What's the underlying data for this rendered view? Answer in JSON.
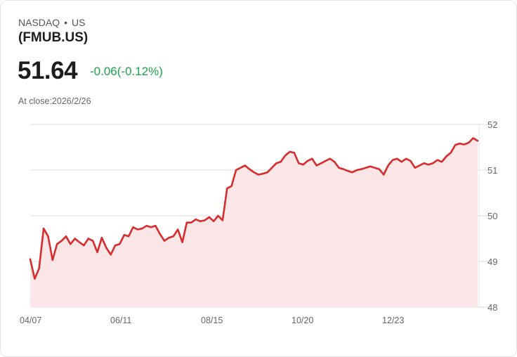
{
  "header": {
    "exchange": "NASDAQ",
    "separator": "•",
    "region": "US",
    "ticker": "(FMUB.US)"
  },
  "quote": {
    "price": "51.64",
    "change": "-0.06(-0.12%)",
    "change_color": "#1aa34a",
    "close_label": "At close:2026/2/26"
  },
  "colors": {
    "line": "#d92b2b",
    "fill": "#fbe6e7",
    "grid": "#dddddd"
  },
  "chart_data": {
    "type": "area",
    "title": "",
    "xlabel": "",
    "ylabel": "",
    "ylim": [
      48,
      52
    ],
    "yticks": [
      52,
      51,
      50,
      49,
      48
    ],
    "xtick_labels": [
      "04/07",
      "06/11",
      "08/15",
      "10/20",
      "12/23"
    ],
    "grid": true,
    "y_axis_position": "right",
    "legend": null,
    "x": [
      "04/07",
      "04/09",
      "04/11",
      "04/15",
      "04/17",
      "04/21",
      "04/23",
      "04/25",
      "04/29",
      "05/01",
      "05/05",
      "05/07",
      "05/09",
      "05/13",
      "05/15",
      "05/19",
      "05/21",
      "05/23",
      "05/27",
      "05/29",
      "06/02",
      "06/04",
      "06/06",
      "06/10",
      "06/12",
      "06/16",
      "06/18",
      "06/20",
      "06/24",
      "06/26",
      "06/30",
      "07/02",
      "07/07",
      "07/09",
      "07/11",
      "07/15",
      "07/17",
      "07/21",
      "07/23",
      "07/25",
      "07/29",
      "07/31",
      "08/04",
      "08/06",
      "08/08",
      "08/12",
      "08/14",
      "08/18",
      "08/20",
      "08/22",
      "08/26",
      "08/28",
      "09/02",
      "09/04",
      "09/08",
      "09/10",
      "09/12",
      "09/16",
      "09/18",
      "09/22",
      "09/24",
      "09/26",
      "09/30",
      "10/02",
      "10/06",
      "10/08",
      "10/10",
      "10/14",
      "10/16",
      "10/20",
      "10/22",
      "10/24",
      "10/28",
      "10/30",
      "11/03",
      "11/05",
      "11/07",
      "11/11",
      "11/13",
      "11/17",
      "11/19",
      "11/21",
      "11/25",
      "11/28",
      "12/02",
      "12/04",
      "12/08",
      "12/10",
      "12/12",
      "12/16",
      "12/18",
      "12/22",
      "12/24",
      "12/29",
      "12/31",
      "01/05",
      "01/07",
      "01/09",
      "01/13",
      "01/15",
      "01/20",
      "01/22",
      "01/26",
      "01/28",
      "01/30",
      "02/03",
      "02/05",
      "02/09",
      "02/11",
      "02/13",
      "02/18",
      "02/20",
      "02/24",
      "02/26"
    ],
    "values": [
      49.05,
      48.62,
      48.85,
      49.72,
      49.55,
      49.03,
      49.38,
      49.45,
      49.55,
      49.38,
      49.5,
      49.42,
      49.35,
      49.5,
      49.45,
      49.2,
      49.52,
      49.3,
      49.15,
      49.35,
      49.38,
      49.58,
      49.55,
      49.75,
      49.7,
      49.72,
      49.78,
      49.75,
      49.78,
      49.6,
      49.45,
      49.52,
      49.55,
      49.7,
      49.42,
      49.85,
      49.85,
      49.92,
      49.88,
      49.9,
      49.97,
      49.88,
      50.0,
      49.9,
      50.6,
      50.65,
      51.0,
      51.05,
      51.1,
      51.02,
      50.95,
      50.9,
      50.92,
      50.95,
      51.05,
      51.15,
      51.18,
      51.32,
      51.4,
      51.38,
      51.15,
      51.12,
      51.2,
      51.25,
      51.1,
      51.15,
      51.2,
      51.25,
      51.18,
      51.05,
      51.02,
      50.98,
      50.95,
      51.0,
      51.02,
      51.05,
      51.08,
      51.05,
      51.02,
      50.9,
      51.1,
      51.22,
      51.25,
      51.18,
      51.25,
      51.2,
      51.05,
      51.1,
      51.15,
      51.12,
      51.15,
      51.22,
      51.18,
      51.3,
      51.38,
      51.55,
      51.58,
      51.56,
      51.6,
      51.7,
      51.64,
      51.64,
      51.64,
      51.64,
      51.64,
      51.64,
      51.64,
      51.64,
      51.64,
      51.64,
      51.64,
      51.64,
      51.64,
      51.64
    ]
  }
}
